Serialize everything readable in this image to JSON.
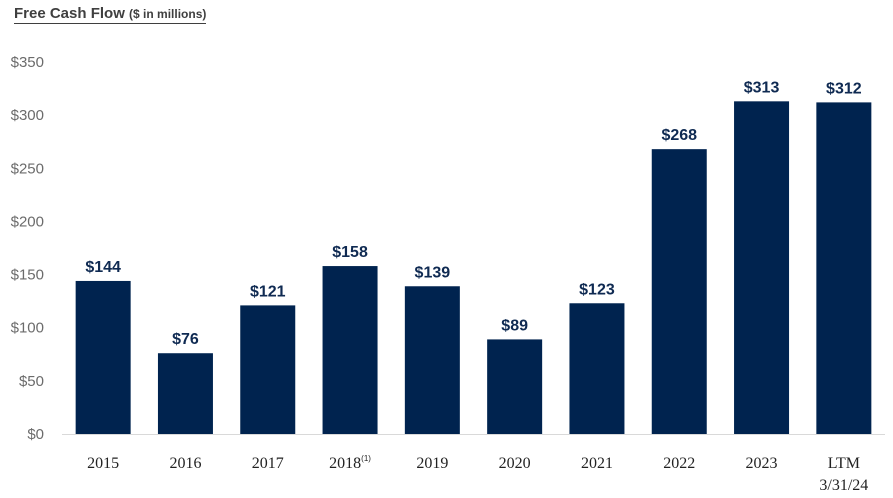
{
  "chart_data": {
    "type": "bar",
    "title": "Free Cash Flow",
    "subtitle": "($ in millions)",
    "categories": [
      "2015",
      "2016",
      "2017",
      "2018",
      "2019",
      "2020",
      "2021",
      "2022",
      "2023",
      "LTM 3/31/24"
    ],
    "category_lines": [
      [
        "2015"
      ],
      [
        "2016"
      ],
      [
        "2017"
      ],
      [
        "2018"
      ],
      [
        "2019"
      ],
      [
        "2020"
      ],
      [
        "2021"
      ],
      [
        "2022"
      ],
      [
        "2023"
      ],
      [
        "LTM",
        "3/31/24"
      ]
    ],
    "category_superscripts": [
      "",
      "",
      "",
      "(1)",
      "",
      "",
      "",
      "",
      "",
      ""
    ],
    "values": [
      144,
      76,
      121,
      158,
      139,
      89,
      123,
      268,
      313,
      312
    ],
    "data_labels": [
      "$144",
      "$76",
      "$121",
      "$158",
      "$139",
      "$89",
      "$123",
      "$268",
      "$313",
      "$312"
    ],
    "yticks": [
      0,
      50,
      100,
      150,
      200,
      250,
      300,
      350
    ],
    "ytick_labels": [
      "$0",
      "$50",
      "$100",
      "$150",
      "$200",
      "$250",
      "$300",
      "$350"
    ],
    "ylim": [
      0,
      350
    ],
    "grid": false,
    "legend": "none",
    "bar_color": "#00234f",
    "label_color": "#0f2a52"
  }
}
